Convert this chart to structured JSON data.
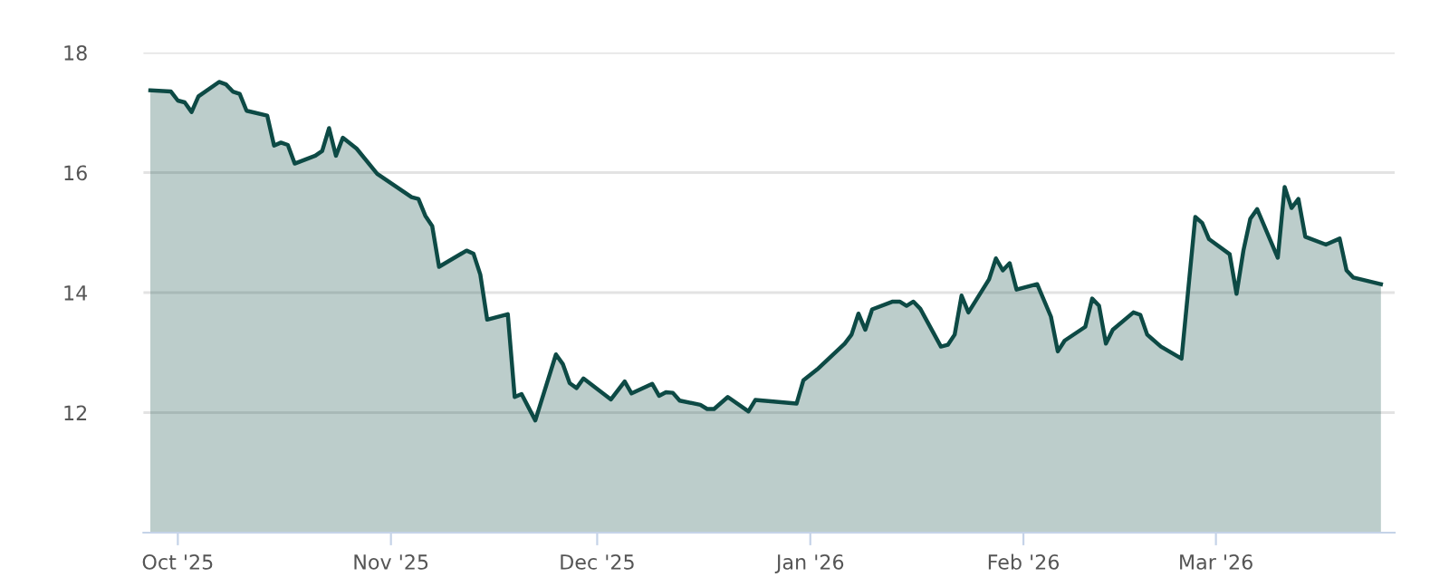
{
  "chart_data": {
    "type": "area",
    "x": [
      "2025-09-27",
      "2025-09-30",
      "2025-10-01",
      "2025-10-02",
      "2025-10-03",
      "2025-10-04",
      "2025-10-07",
      "2025-10-08",
      "2025-10-09",
      "2025-10-10",
      "2025-10-11",
      "2025-10-14",
      "2025-10-15",
      "2025-10-16",
      "2025-10-17",
      "2025-10-18",
      "2025-10-21",
      "2025-10-22",
      "2025-10-23",
      "2025-10-24",
      "2025-10-25",
      "2025-10-27",
      "2025-10-30",
      "2025-11-04",
      "2025-11-05",
      "2025-11-06",
      "2025-11-07",
      "2025-11-08",
      "2025-11-12",
      "2025-11-13",
      "2025-11-14",
      "2025-11-15",
      "2025-11-18",
      "2025-11-19",
      "2025-11-20",
      "2025-11-22",
      "2025-11-25",
      "2025-11-26",
      "2025-11-27",
      "2025-11-28",
      "2025-11-29",
      "2025-12-03",
      "2025-12-05",
      "2025-12-06",
      "2025-12-09",
      "2025-12-10",
      "2025-12-11",
      "2025-12-12",
      "2025-12-13",
      "2025-12-16",
      "2025-12-17",
      "2025-12-18",
      "2025-12-20",
      "2025-12-23",
      "2025-12-24",
      "2025-12-30",
      "2025-12-31",
      "2026-01-02",
      "2026-01-06",
      "2026-01-07",
      "2026-01-08",
      "2026-01-09",
      "2026-01-10",
      "2026-01-13",
      "2026-01-14",
      "2026-01-15",
      "2026-01-16",
      "2026-01-17",
      "2026-01-20",
      "2026-01-21",
      "2026-01-22",
      "2026-01-23",
      "2026-01-24",
      "2026-01-27",
      "2026-01-28",
      "2026-01-29",
      "2026-01-30",
      "2026-01-31",
      "2026-02-03",
      "2026-02-05",
      "2026-02-06",
      "2026-02-07",
      "2026-02-10",
      "2026-02-11",
      "2026-02-12",
      "2026-02-13",
      "2026-02-14",
      "2026-02-17",
      "2026-02-18",
      "2026-02-19",
      "2026-02-21",
      "2026-02-24",
      "2026-02-26",
      "2026-02-27",
      "2026-02-28",
      "2026-03-03",
      "2026-03-04",
      "2026-03-05",
      "2026-03-06",
      "2026-03-07",
      "2026-03-10",
      "2026-03-11",
      "2026-03-12",
      "2026-03-13",
      "2026-03-14",
      "2026-03-17",
      "2026-03-19",
      "2026-03-20",
      "2026-03-21",
      "2026-03-25"
    ],
    "series": [
      {
        "color": "#0d4a45",
        "values": [
          17.37,
          17.35,
          17.2,
          17.17,
          17.01,
          17.27,
          17.51,
          17.47,
          17.35,
          17.31,
          17.03,
          16.95,
          16.45,
          16.5,
          16.46,
          16.15,
          16.28,
          16.36,
          16.74,
          16.28,
          16.58,
          16.4,
          15.98,
          15.59,
          15.56,
          15.28,
          15.11,
          14.43,
          14.7,
          14.65,
          14.3,
          13.55,
          13.64,
          12.26,
          12.31,
          11.87,
          12.97,
          12.81,
          12.49,
          12.41,
          12.57,
          12.22,
          12.52,
          12.32,
          12.48,
          12.28,
          12.34,
          12.33,
          12.2,
          12.13,
          12.06,
          12.06,
          12.26,
          12.02,
          12.21,
          12.15,
          12.54,
          12.72,
          13.15,
          13.3,
          13.65,
          13.38,
          13.72,
          13.85,
          13.85,
          13.78,
          13.85,
          13.73,
          13.1,
          13.13,
          13.3,
          13.95,
          13.67,
          14.22,
          14.57,
          14.37,
          14.49,
          14.05,
          14.14,
          13.6,
          13.02,
          13.2,
          13.43,
          13.9,
          13.78,
          13.15,
          13.38,
          13.67,
          13.63,
          13.3,
          13.1,
          12.9,
          15.26,
          15.16,
          14.89,
          14.64,
          13.98,
          14.7,
          15.23,
          15.39,
          14.58,
          15.76,
          15.41,
          15.56,
          14.93,
          14.8,
          14.9,
          14.37,
          14.25,
          14.14
        ]
      }
    ],
    "xlim": [
      "2025-09-26",
      "2026-03-27"
    ],
    "xticks": [
      {
        "value": "2025-10-01",
        "label": "Oct '25"
      },
      {
        "value": "2025-11-01",
        "label": "Nov '25"
      },
      {
        "value": "2025-12-01",
        "label": "Dec '25"
      },
      {
        "value": "2026-01-01",
        "label": "Jan '26"
      },
      {
        "value": "2026-02-01",
        "label": "Feb '26"
      },
      {
        "value": "2026-03-01",
        "label": "Mar '26"
      }
    ],
    "ylim": [
      10,
      18
    ],
    "yticks": [
      12,
      14,
      16,
      18
    ],
    "grid": "y",
    "legend": false
  }
}
